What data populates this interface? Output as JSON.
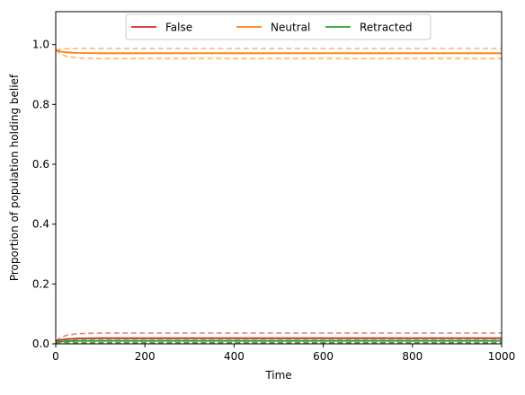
{
  "chart_data": {
    "type": "line",
    "xlabel": "Time",
    "ylabel": "Proportion of population holding belief",
    "xlim": [
      0,
      1000
    ],
    "ylim": [
      0,
      1.11
    ],
    "xticks": [
      0,
      200,
      400,
      600,
      800,
      1000
    ],
    "xtick_labels": [
      "0",
      "200",
      "400",
      "600",
      "800",
      "1000"
    ],
    "yticks": [
      0.0,
      0.2,
      0.4,
      0.6,
      0.8,
      1.0
    ],
    "ytick_labels": [
      "0.0",
      "0.2",
      "0.4",
      "0.6",
      "0.8",
      "1.0"
    ],
    "grid": false,
    "legend_placement": "upper-center",
    "legend_columns": 3,
    "series": [
      {
        "name": "False",
        "color": "#d62728",
        "x": [
          0,
          10,
          25,
          50,
          100,
          200,
          400,
          1000
        ],
        "mean": [
          0.01,
          0.013,
          0.016,
          0.018,
          0.019,
          0.019,
          0.019,
          0.019
        ],
        "upper": [
          0.01,
          0.02,
          0.029,
          0.034,
          0.036,
          0.036,
          0.036,
          0.036
        ],
        "lower": [
          0.01,
          0.007,
          0.005,
          0.004,
          0.004,
          0.004,
          0.004,
          0.004
        ]
      },
      {
        "name": "Neutral",
        "color": "#ff7f0e",
        "x": [
          0,
          10,
          25,
          50,
          100,
          200,
          400,
          1000
        ],
        "mean": [
          0.982,
          0.977,
          0.974,
          0.972,
          0.971,
          0.971,
          0.971,
          0.971
        ],
        "upper": [
          0.982,
          0.984,
          0.986,
          0.987,
          0.987,
          0.987,
          0.987,
          0.987
        ],
        "lower": [
          0.982,
          0.969,
          0.96,
          0.955,
          0.953,
          0.953,
          0.953,
          0.953
        ]
      },
      {
        "name": "Retracted",
        "color": "#2ca02c",
        "x": [
          0,
          10,
          25,
          50,
          100,
          200,
          400,
          1000
        ],
        "mean": [
          0.004,
          0.007,
          0.009,
          0.01,
          0.01,
          0.01,
          0.01,
          0.01
        ],
        "upper": [
          0.004,
          0.01,
          0.013,
          0.015,
          0.016,
          0.016,
          0.016,
          0.016
        ],
        "lower": [
          0.004,
          0.004,
          0.004,
          0.004,
          0.004,
          0.004,
          0.004,
          0.004
        ]
      }
    ]
  }
}
